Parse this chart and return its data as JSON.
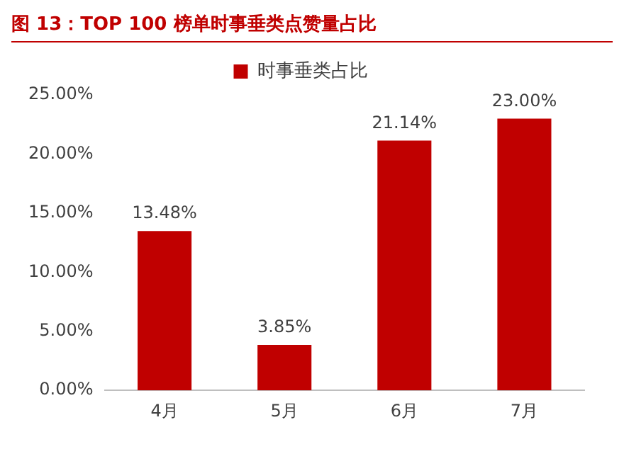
{
  "chart_data": {
    "type": "bar",
    "title": "图 13：TOP 100 榜单时事垂类点赞量占比",
    "categories": [
      "4月",
      "5月",
      "6月",
      "7月"
    ],
    "series": [
      {
        "name": "时事垂类占比",
        "color": "#c00000",
        "values": [
          13.48,
          3.85,
          21.14,
          23.0
        ],
        "value_labels": [
          "13.48%",
          "3.85%",
          "21.14%",
          "23.00%"
        ]
      }
    ],
    "ylim": [
      0,
      25
    ],
    "yticks": [
      {
        "value": 0,
        "label": "0.00%"
      },
      {
        "value": 5,
        "label": "5.00%"
      },
      {
        "value": 10,
        "label": "10.00%"
      },
      {
        "value": 15,
        "label": "15.00%"
      },
      {
        "value": 20,
        "label": "20.00%"
      },
      {
        "value": 25,
        "label": "25.00%"
      }
    ],
    "grid": false,
    "legend": "top"
  }
}
